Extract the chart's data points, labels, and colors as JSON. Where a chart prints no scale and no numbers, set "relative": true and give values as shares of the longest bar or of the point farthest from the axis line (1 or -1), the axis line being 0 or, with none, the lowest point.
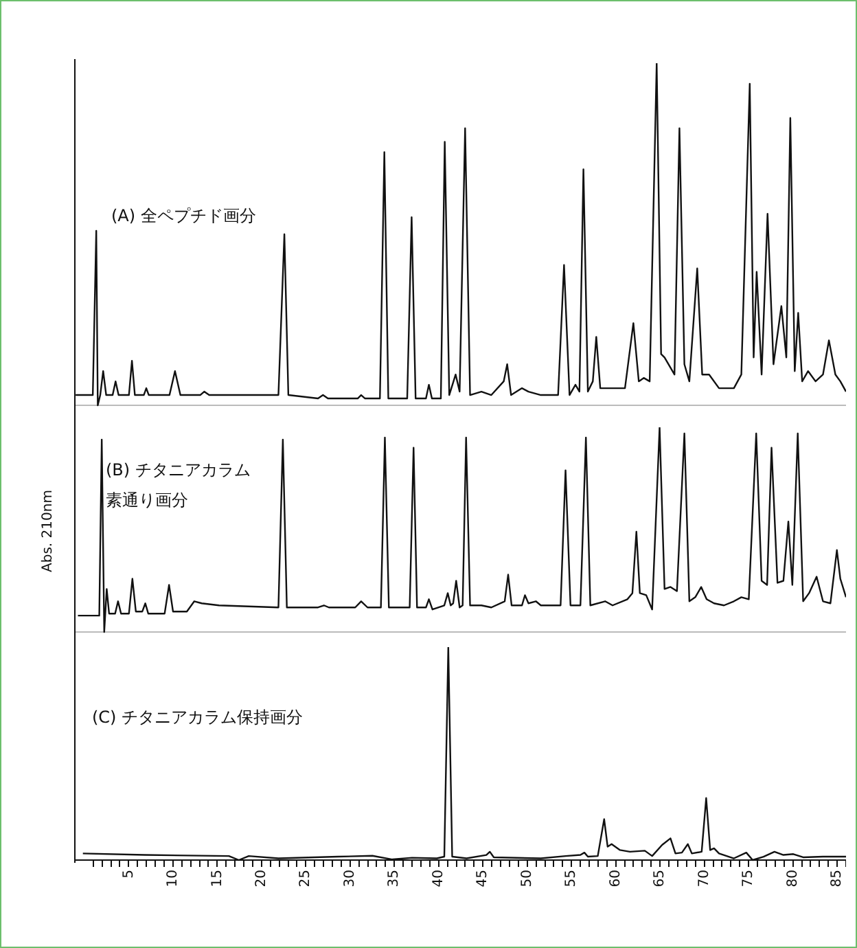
{
  "chart_data": [
    {
      "type": "line",
      "relative": true,
      "title": "(A) 全ペプチド画分",
      "color": "#111111",
      "marker": "none",
      "tick_labels": false,
      "xlim": [
        -1,
        86
      ],
      "x": [
        -0.99,
        0.95,
        1.34,
        1.51,
        1.79,
        2.12,
        2.46,
        3.19,
        3.52,
        3.86,
        5.03,
        5.37,
        5.7,
        6.71,
        6.99,
        7.27,
        9.61,
        10.23,
        10.84,
        13.08,
        13.53,
        14.09,
        21.91,
        22.58,
        23.03,
        26.38,
        26.94,
        27.5,
        30.86,
        31.25,
        31.69,
        33.37,
        33.87,
        34.32,
        36.45,
        36.95,
        37.4,
        38.57,
        38.9,
        39.24,
        40.25,
        40.69,
        41.2,
        41.92,
        42.37,
        42.99,
        43.55,
        44.83,
        45.95,
        47.35,
        47.74,
        48.18,
        49.41,
        50.14,
        51.54,
        53.49,
        54.16,
        54.78,
        55.45,
        55.9,
        56.35,
        56.85,
        57.41,
        57.8,
        58.25,
        61.04,
        61.99,
        62.6,
        63.16,
        63.83,
        64.62,
        65.12,
        65.51,
        66.63,
        67.19,
        67.75,
        68.31,
        69.2,
        69.76,
        70.54,
        71.66,
        73.34,
        74.18,
        75.13,
        75.57,
        75.91,
        76.47,
        77.14,
        77.81,
        78.7,
        79.26,
        79.71,
        80.21,
        80.6,
        81.05,
        81.72,
        82.56,
        83.4,
        84.07,
        84.8,
        85.36,
        86
      ],
      "values": [
        0.03,
        0.03,
        0.51,
        0,
        0.03,
        0.1,
        0.03,
        0.03,
        0.07,
        0.03,
        0.03,
        0.13,
        0.03,
        0.03,
        0.05,
        0.03,
        0.03,
        0.1,
        0.03,
        0.03,
        0.04,
        0.03,
        0.03,
        0.5,
        0.03,
        0.02,
        0.03,
        0.02,
        0.02,
        0.03,
        0.02,
        0.02,
        0.74,
        0.02,
        0.02,
        0.55,
        0.02,
        0.02,
        0.06,
        0.02,
        0.02,
        0.77,
        0.03,
        0.09,
        0.04,
        0.81,
        0.03,
        0.04,
        0.03,
        0.07,
        0.12,
        0.03,
        0.05,
        0.04,
        0.03,
        0.03,
        0.41,
        0.03,
        0.06,
        0.04,
        0.69,
        0.04,
        0.07,
        0.2,
        0.05,
        0.05,
        0.24,
        0.07,
        0.08,
        0.07,
        1,
        0.15,
        0.14,
        0.09,
        0.81,
        0.12,
        0.07,
        0.4,
        0.09,
        0.09,
        0.05,
        0.05,
        0.09,
        0.94,
        0.14,
        0.39,
        0.09,
        0.56,
        0.12,
        0.29,
        0.14,
        0.84,
        0.1,
        0.27,
        0.07,
        0.1,
        0.07,
        0.09,
        0.19,
        0.09,
        0.07,
        0.04
      ]
    },
    {
      "type": "line",
      "relative": true,
      "title": "(B) チタニアカラム素通り画分",
      "ylabel": "Abs. 210nm",
      "color": "#111111",
      "marker": "none",
      "tick_labels": false,
      "xlim": [
        -1,
        86
      ],
      "x": [
        -0.73,
        1.68,
        1.96,
        2.24,
        2.52,
        2.79,
        3.47,
        3.8,
        4.14,
        5.03,
        5.42,
        5.81,
        6.54,
        6.88,
        7.21,
        9.06,
        9.56,
        10.01,
        11.57,
        12.41,
        13.25,
        15.2,
        21.91,
        22.41,
        22.86,
        26.38,
        27.05,
        27.61,
        30.58,
        31.25,
        31.97,
        33.48,
        33.93,
        34.38,
        36.73,
        37.17,
        37.56,
        38.57,
        38.9,
        39.3,
        40.64,
        41.03,
        41.36,
        41.64,
        41.98,
        42.37,
        42.71,
        43.1,
        43.55,
        44.83,
        45.95,
        47.46,
        47.85,
        48.24,
        49.41,
        49.75,
        50.14,
        50.98,
        51.54,
        53.77,
        54.33,
        54.89,
        56.01,
        56.63,
        57.13,
        58.8,
        59.64,
        61.32,
        61.88,
        62.33,
        62.72,
        63.44,
        64.11,
        64.95,
        65.51,
        66.18,
        66.91,
        67.75,
        68.31,
        68.98,
        69.65,
        70.26,
        71.1,
        72.22,
        73.34,
        74.18,
        75.02,
        75.86,
        76.47,
        77.09,
        77.59,
        78.26,
        78.93,
        79.49,
        79.94,
        80.55,
        81.16,
        81.83,
        82.68,
        83.4,
        84.24,
        84.97,
        85.36,
        86
      ],
      "values": [
        0.08,
        0.08,
        0.94,
        0,
        0.21,
        0.09,
        0.09,
        0.15,
        0.09,
        0.09,
        0.26,
        0.1,
        0.1,
        0.14,
        0.09,
        0.09,
        0.23,
        0.1,
        0.1,
        0.15,
        0.14,
        0.13,
        0.12,
        0.94,
        0.12,
        0.12,
        0.13,
        0.12,
        0.12,
        0.15,
        0.12,
        0.12,
        0.95,
        0.12,
        0.12,
        0.9,
        0.12,
        0.12,
        0.16,
        0.11,
        0.13,
        0.19,
        0.13,
        0.14,
        0.25,
        0.12,
        0.13,
        0.95,
        0.13,
        0.13,
        0.12,
        0.15,
        0.28,
        0.13,
        0.13,
        0.18,
        0.14,
        0.15,
        0.13,
        0.13,
        0.79,
        0.13,
        0.13,
        0.95,
        0.13,
        0.15,
        0.13,
        0.16,
        0.19,
        0.49,
        0.19,
        0.18,
        0.11,
        1,
        0.21,
        0.22,
        0.2,
        0.97,
        0.15,
        0.17,
        0.22,
        0.16,
        0.14,
        0.13,
        0.15,
        0.17,
        0.16,
        0.97,
        0.25,
        0.23,
        0.9,
        0.24,
        0.25,
        0.54,
        0.23,
        0.97,
        0.15,
        0.19,
        0.27,
        0.15,
        0.14,
        0.4,
        0.26,
        0.17
      ]
    },
    {
      "type": "line",
      "relative": true,
      "title": "(C) チタニアカラム保持画分",
      "color": "#111111",
      "marker": "none",
      "tick_labels": "x",
      "xlim": [
        -1,
        86
      ],
      "xticks": [
        {
          "value": 1,
          "label": null
        },
        {
          "value": 2,
          "label": null
        },
        {
          "value": 3,
          "label": null
        },
        {
          "value": 4,
          "label": null
        },
        5,
        {
          "value": 6,
          "label": null
        },
        {
          "value": 7,
          "label": null
        },
        {
          "value": 8,
          "label": null
        },
        {
          "value": 9,
          "label": null
        },
        10,
        {
          "value": 11,
          "label": null
        },
        {
          "value": 12,
          "label": null
        },
        {
          "value": 13,
          "label": null
        },
        {
          "value": 14,
          "label": null
        },
        15,
        {
          "value": 16,
          "label": null
        },
        {
          "value": 17,
          "label": null
        },
        {
          "value": 18,
          "label": null
        },
        {
          "value": 19,
          "label": null
        },
        20,
        {
          "value": 21,
          "label": null
        },
        {
          "value": 22,
          "label": null
        },
        {
          "value": 23,
          "label": null
        },
        {
          "value": 24,
          "label": null
        },
        25,
        {
          "value": 26,
          "label": null
        },
        {
          "value": 27,
          "label": null
        },
        {
          "value": 28,
          "label": null
        },
        {
          "value": 29,
          "label": null
        },
        30,
        {
          "value": 31,
          "label": null
        },
        {
          "value": 32,
          "label": null
        },
        {
          "value": 33,
          "label": null
        },
        {
          "value": 34,
          "label": null
        },
        35,
        {
          "value": 36,
          "label": null
        },
        {
          "value": 37,
          "label": null
        },
        {
          "value": 38,
          "label": null
        },
        {
          "value": 39,
          "label": null
        },
        40,
        {
          "value": 41,
          "label": null
        },
        {
          "value": 42,
          "label": null
        },
        {
          "value": 43,
          "label": null
        },
        {
          "value": 44,
          "label": null
        },
        45,
        {
          "value": 46,
          "label": null
        },
        {
          "value": 47,
          "label": null
        },
        {
          "value": 48,
          "label": null
        },
        {
          "value": 49,
          "label": null
        },
        50,
        {
          "value": 51,
          "label": null
        },
        {
          "value": 52,
          "label": null
        },
        {
          "value": 53,
          "label": null
        },
        {
          "value": 54,
          "label": null
        },
        55,
        {
          "value": 56,
          "label": null
        },
        {
          "value": 57,
          "label": null
        },
        {
          "value": 58,
          "label": null
        },
        {
          "value": 59,
          "label": null
        },
        60,
        {
          "value": 61,
          "label": null
        },
        {
          "value": 62,
          "label": null
        },
        {
          "value": 63,
          "label": null
        },
        {
          "value": 64,
          "label": null
        },
        65,
        {
          "value": 66,
          "label": null
        },
        {
          "value": 67,
          "label": null
        },
        {
          "value": 68,
          "label": null
        },
        {
          "value": 69,
          "label": null
        },
        70,
        {
          "value": 71,
          "label": null
        },
        {
          "value": 72,
          "label": null
        },
        {
          "value": 73,
          "label": null
        },
        {
          "value": 74,
          "label": null
        },
        75,
        {
          "value": 76,
          "label": null
        },
        {
          "value": 77,
          "label": null
        },
        {
          "value": 78,
          "label": null
        },
        {
          "value": 79,
          "label": null
        },
        80,
        {
          "value": 81,
          "label": null
        },
        {
          "value": 82,
          "label": null
        },
        {
          "value": 83,
          "label": null
        },
        {
          "value": 84,
          "label": null
        },
        85,
        {
          "value": 86,
          "label": null
        }
      ],
      "x": [
        -0.17,
        6.82,
        16.32,
        17.44,
        18.56,
        21.91,
        28.62,
        32.53,
        34.77,
        37.0,
        39.8,
        40.64,
        41.09,
        41.53,
        43.15,
        45.39,
        45.78,
        46.23,
        51.54,
        54.33,
        56.01,
        56.46,
        56.85,
        57.97,
        58.69,
        59.08,
        59.53,
        60.48,
        61.6,
        63.28,
        64.11,
        65.23,
        66.18,
        66.74,
        67.47,
        68.14,
        68.59,
        69.7,
        70.21,
        70.66,
        71.1,
        71.66,
        73.34,
        74.74,
        75.46,
        76.69,
        77.92,
        78.93,
        80.05,
        81.16,
        83.4,
        85.36,
        86
      ],
      "values": [
        0.031,
        0.024,
        0.019,
        0,
        0.019,
        0.008,
        0.016,
        0.02,
        0.003,
        0.011,
        0.008,
        0.016,
        1,
        0.016,
        0.008,
        0.024,
        0.039,
        0.013,
        0.008,
        0.019,
        0.024,
        0.035,
        0.016,
        0.019,
        0.192,
        0.063,
        0.075,
        0.047,
        0.039,
        0.044,
        0.019,
        0.071,
        0.102,
        0.031,
        0.035,
        0.075,
        0.031,
        0.039,
        0.291,
        0.047,
        0.055,
        0.031,
        0.008,
        0.035,
        0,
        0.016,
        0.039,
        0.024,
        0.028,
        0.013,
        0.016,
        0.016,
        0.016
      ]
    }
  ]
}
